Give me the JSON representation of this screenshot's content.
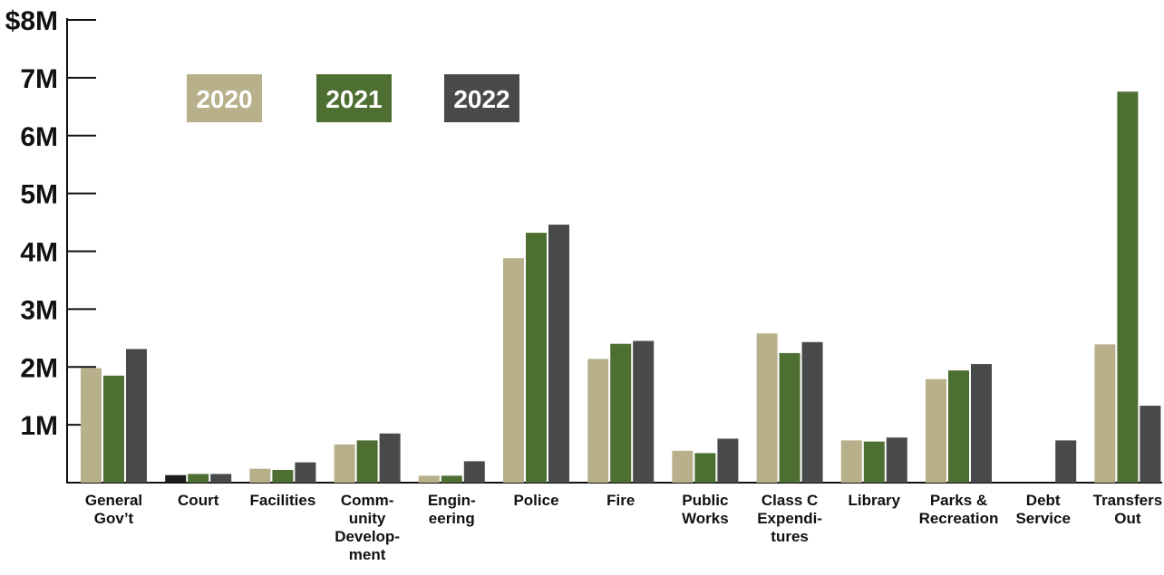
{
  "chart_data": {
    "type": "bar",
    "categories": [
      [
        "General",
        "Gov’t"
      ],
      [
        "Court"
      ],
      [
        "Facilities"
      ],
      [
        "Comm-",
        "unity",
        "Develop-",
        "ment"
      ],
      [
        "Engin-",
        "eering"
      ],
      [
        "Police"
      ],
      [
        "Fire"
      ],
      [
        "Public",
        "Works"
      ],
      [
        "Class C",
        "Expendi-",
        "tures"
      ],
      [
        "Library"
      ],
      [
        "Parks &",
        "Recreation"
      ],
      [
        "Debt",
        "Service"
      ],
      [
        "Transfers",
        "Out"
      ]
    ],
    "series": [
      {
        "name": "2020",
        "color": "#b8b08a",
        "values": [
          1.98,
          0.13,
          0.24,
          0.66,
          0.12,
          3.88,
          2.14,
          0.55,
          2.58,
          0.73,
          1.79,
          null,
          2.39
        ]
      },
      {
        "name": "2021",
        "color": "#4e6f32",
        "values": [
          1.85,
          0.15,
          0.22,
          0.73,
          0.12,
          4.32,
          2.4,
          0.51,
          2.24,
          0.71,
          1.94,
          null,
          6.76
        ]
      },
      {
        "name": "2022",
        "color": "#48494b",
        "values": [
          2.31,
          0.15,
          0.35,
          0.85,
          0.37,
          4.46,
          2.45,
          0.76,
          2.43,
          0.78,
          2.05,
          0.73,
          1.33
        ]
      }
    ],
    "first_point_color": "#1b1b1d",
    "yticks": [
      "$8M",
      "7M",
      "6M",
      "5M",
      "4M",
      "3M",
      "2M",
      "1M"
    ],
    "ytick_values": [
      8,
      7,
      6,
      5,
      4,
      3,
      2,
      1
    ],
    "ylim": [
      0,
      8
    ],
    "legend_placement": "top-left"
  }
}
